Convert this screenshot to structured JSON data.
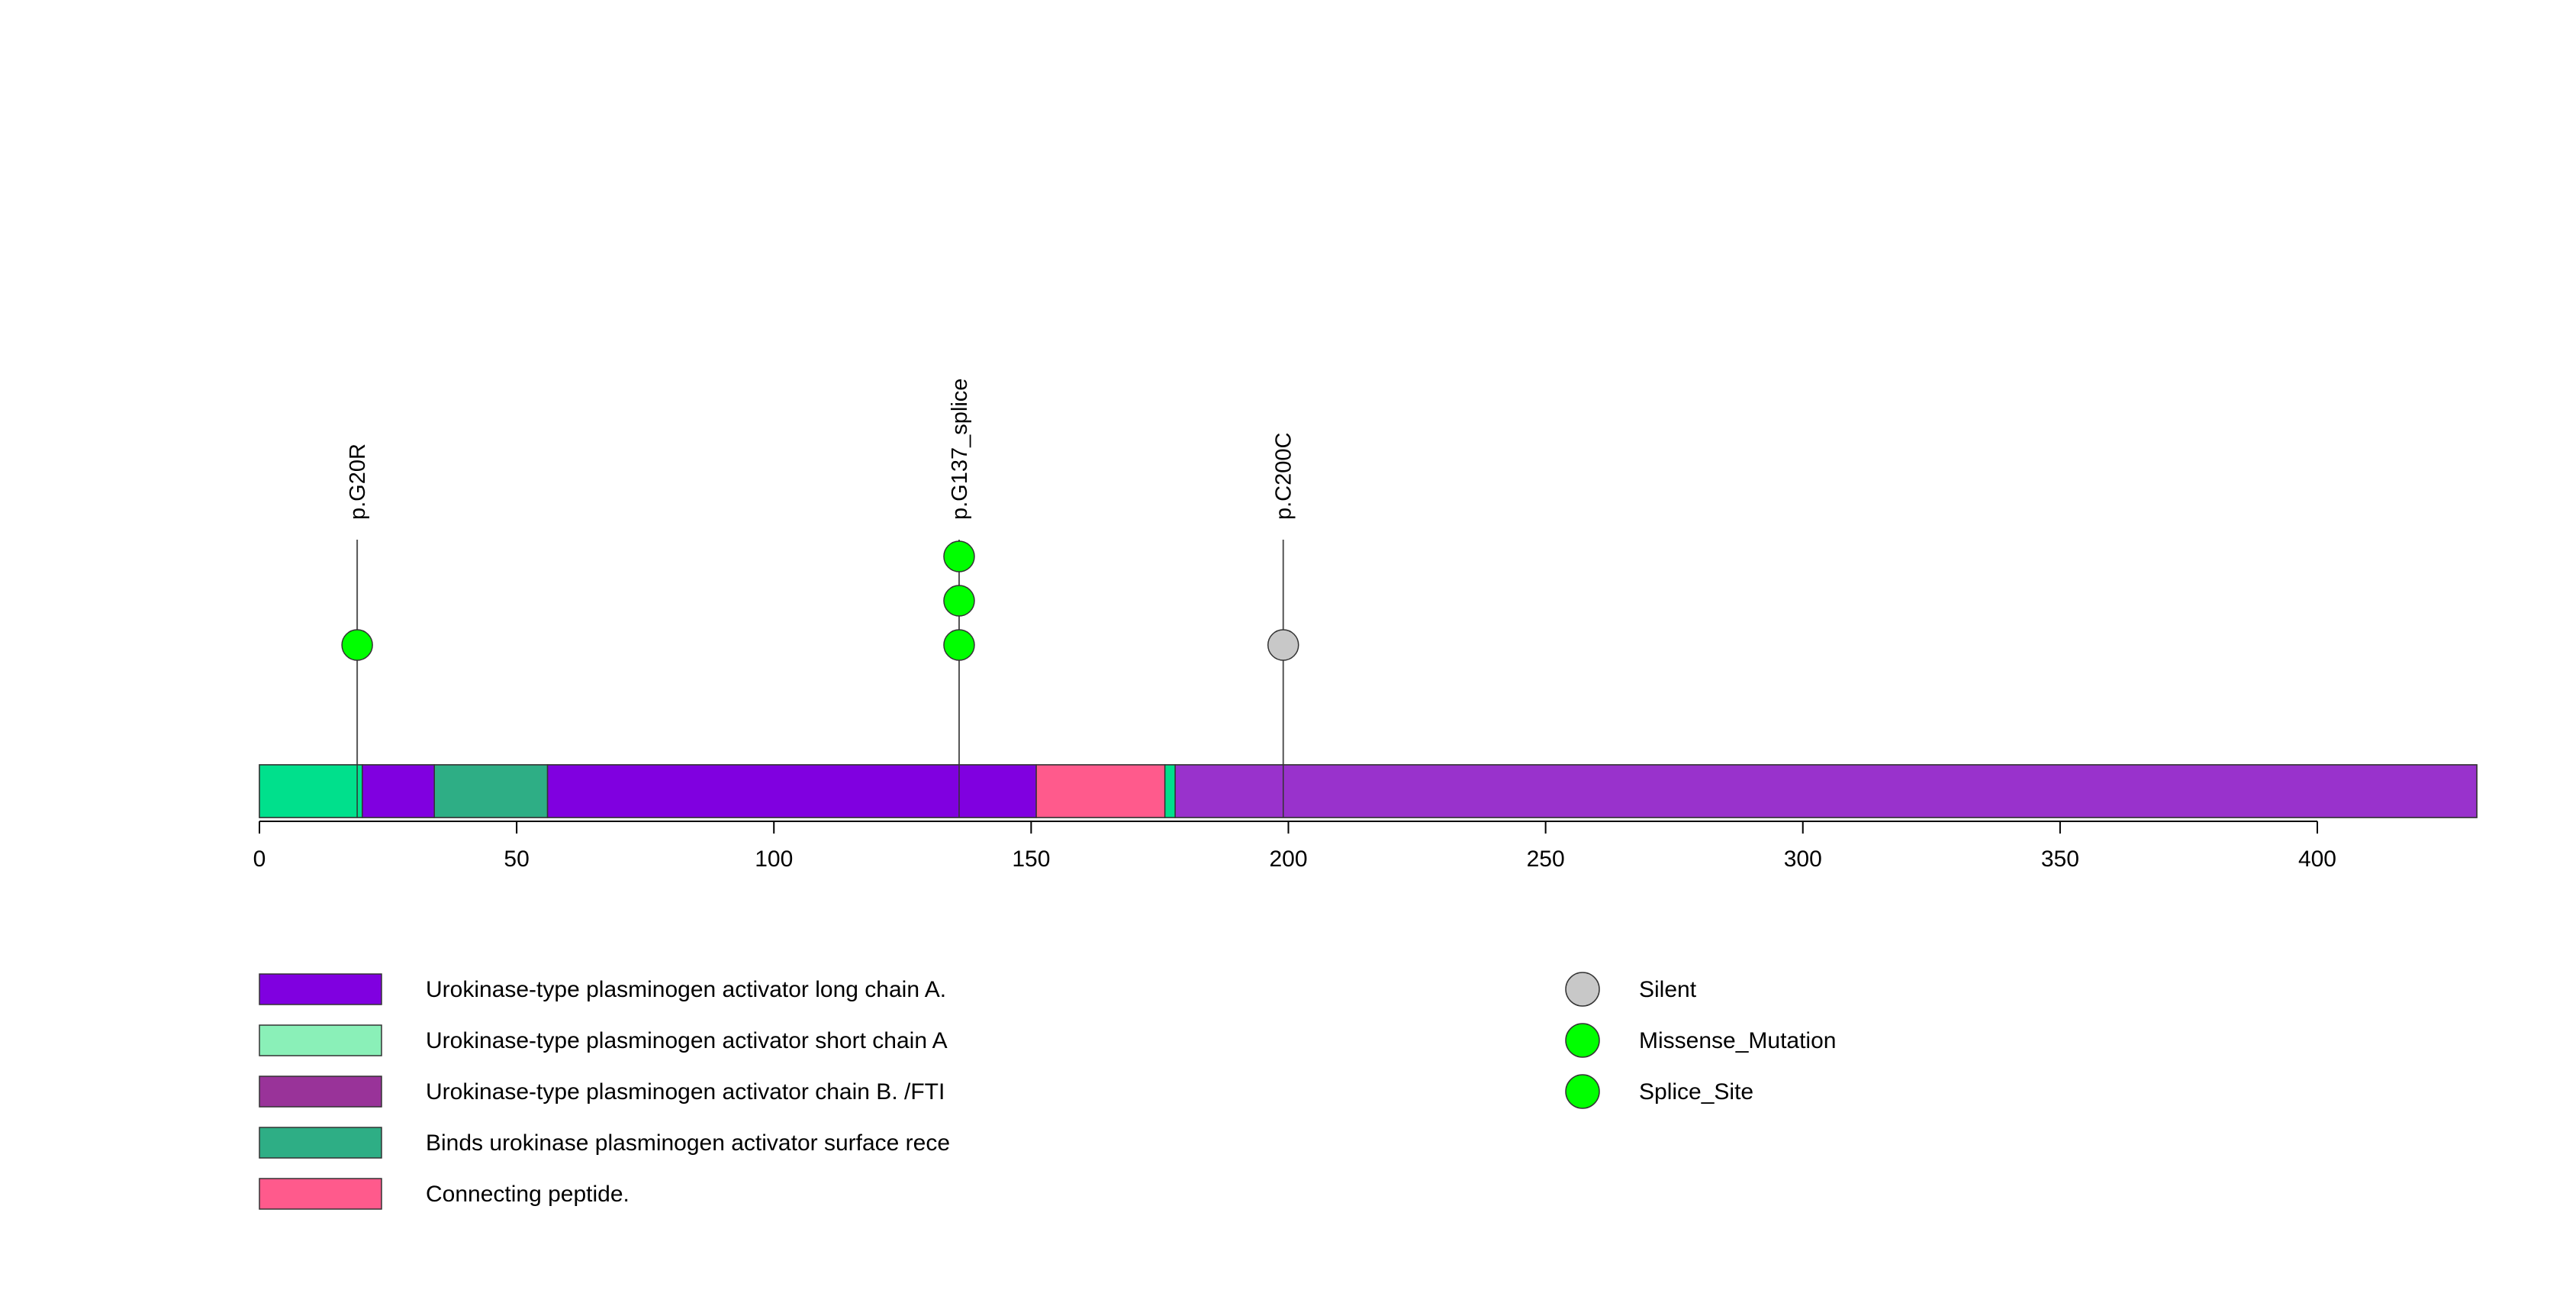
{
  "chart_data": {
    "type": "lollipop",
    "protein_length": 431,
    "xlim": [
      0,
      431
    ],
    "x_ticks": [
      0,
      50,
      100,
      150,
      200,
      250,
      300,
      350,
      400
    ],
    "x_tick_labels": [
      "0",
      "50",
      "100",
      "150",
      "200",
      "250",
      "300",
      "350",
      "400"
    ],
    "backbone_color": "#9932CC",
    "domains": [
      {
        "name": "Urokinase-type plasminogen activator short chain A",
        "start": 0,
        "end": 20,
        "color": "#00E08C"
      },
      {
        "name": "Urokinase-type plasminogen activator long chain A.",
        "start": 20,
        "end": 34,
        "color": "#8000E0"
      },
      {
        "name": "Binds urokinase plasminogen activator surface rece",
        "start": 34,
        "end": 56,
        "color": "#2EAE85"
      },
      {
        "name": "Urokinase-type plasminogen activator long chain A.",
        "start": 56,
        "end": 151,
        "color": "#8000E0"
      },
      {
        "name": "Connecting peptide.",
        "start": 151,
        "end": 176,
        "color": "#FF5A8C"
      },
      {
        "name": "Urokinase-type plasminogen activator short chain A",
        "start": 176,
        "end": 178,
        "color": "#00E08C"
      },
      {
        "name": "Urokinase-type plasminogen activator chain B. /FTI",
        "start": 178,
        "end": 431,
        "color": "#9932CC"
      }
    ],
    "mutations": [
      {
        "label": "p.G20R",
        "position": 19,
        "count": 1,
        "type": "Missense_Mutation"
      },
      {
        "label": "p.G137_splice",
        "position": 136,
        "count": 3,
        "type": "Splice_Site"
      },
      {
        "label": "p.C200C",
        "position": 199,
        "count": 1,
        "type": "Silent"
      }
    ],
    "legend_domains": [
      {
        "label": "Urokinase-type plasminogen activator long chain A.",
        "color": "#8000E0"
      },
      {
        "label": "Urokinase-type plasminogen activator short chain A",
        "color": "#8AF0B8"
      },
      {
        "label": "Urokinase-type plasminogen activator chain B. /FTI",
        "color": "#993399"
      },
      {
        "label": "Binds urokinase plasminogen activator surface rece",
        "color": "#2EAE85"
      },
      {
        "label": "Connecting peptide.",
        "color": "#FF5A8C"
      }
    ],
    "legend_mutation_types": [
      {
        "label": "Silent",
        "color": "#C8C8C8"
      },
      {
        "label": "Missense_Mutation",
        "color": "#00FF00"
      },
      {
        "label": "Splice_Site",
        "color": "#00FF00"
      }
    ]
  }
}
